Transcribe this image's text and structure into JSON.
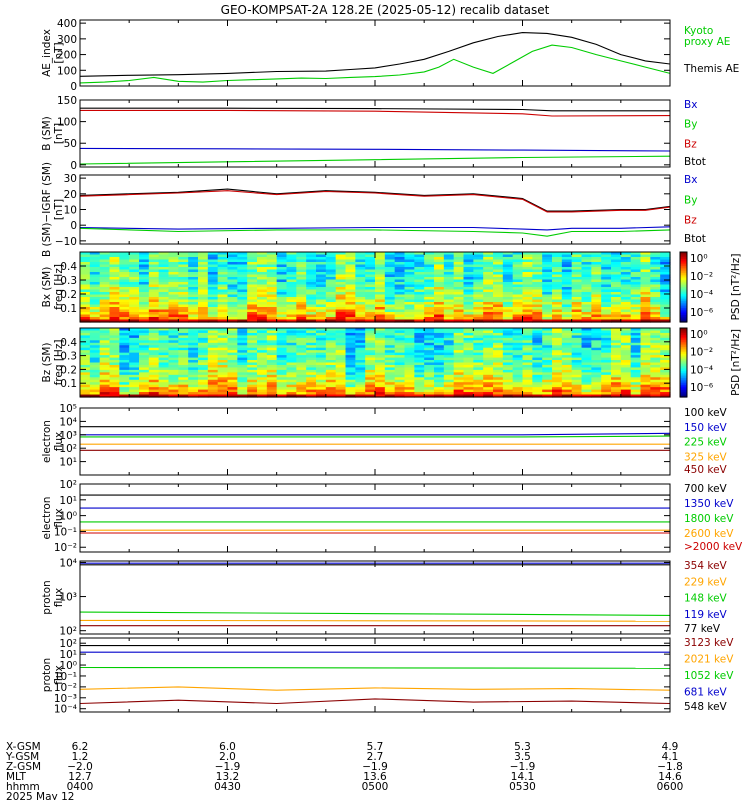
{
  "title": "GEO-KOMPSAT-2A 128.2E (2025-05-12) recalib dataset",
  "chart_data": [
    {
      "type": "line",
      "id": "ae",
      "ylabel": [
        "AE_index",
        "[nT]"
      ],
      "ylim": [
        0,
        420
      ],
      "yticks": [
        "400",
        "300",
        "200",
        "100",
        "0"
      ],
      "ytick_values": [
        400,
        300,
        200,
        100,
        0
      ],
      "legend": [
        {
          "text": "Kyoto",
          "color": "#00cc00"
        },
        {
          "text": "proxy AE",
          "color": "#00cc00"
        },
        {
          "text": "Themis AE",
          "color": "#000000"
        }
      ],
      "series": [
        {
          "name": "Themis AE",
          "color": "#000000",
          "x": [
            0,
            10,
            20,
            30,
            40,
            50,
            55,
            60,
            65,
            70,
            75,
            80,
            85,
            90,
            95,
            100,
            105,
            110,
            115,
            120
          ],
          "y": [
            62,
            68,
            72,
            80,
            92,
            95,
            105,
            115,
            140,
            170,
            220,
            275,
            315,
            340,
            335,
            310,
            265,
            200,
            160,
            140
          ]
        },
        {
          "name": "Kyoto proxy AE",
          "color": "#00cc00",
          "x": [
            0,
            5,
            10,
            15,
            20,
            25,
            30,
            35,
            40,
            45,
            50,
            55,
            60,
            65,
            70,
            73,
            76,
            80,
            84,
            88,
            92,
            96,
            100,
            105,
            110,
            115,
            120
          ],
          "y": [
            20,
            25,
            35,
            55,
            30,
            25,
            35,
            40,
            45,
            50,
            48,
            55,
            60,
            70,
            90,
            120,
            170,
            120,
            80,
            150,
            220,
            260,
            245,
            200,
            160,
            120,
            80
          ]
        }
      ]
    },
    {
      "type": "line",
      "id": "b",
      "ylabel": [
        "B (SM)",
        "[nT]"
      ],
      "ylim": [
        -5,
        150
      ],
      "yticks": [
        "150",
        "100",
        "50",
        "0"
      ],
      "ytick_values": [
        150,
        100,
        50,
        0
      ],
      "legend": [
        {
          "text": "Bx",
          "color": "#0000cc"
        },
        {
          "text": "By",
          "color": "#00cc00"
        },
        {
          "text": "Bz",
          "color": "#cc0000"
        },
        {
          "text": "Btot",
          "color": "#000000"
        }
      ],
      "series": [
        {
          "name": "Btot",
          "color": "#000000",
          "x": [
            0,
            30,
            60,
            90,
            96,
            120
          ],
          "y": [
            131,
            131,
            130,
            128,
            125,
            125
          ]
        },
        {
          "name": "Bz",
          "color": "#cc0000",
          "x": [
            0,
            30,
            60,
            90,
            96,
            120
          ],
          "y": [
            126,
            126,
            124,
            118,
            113,
            114
          ]
        },
        {
          "name": "Bx",
          "color": "#0000cc",
          "x": [
            0,
            30,
            60,
            90,
            120
          ],
          "y": [
            38,
            37,
            36,
            34,
            32
          ]
        },
        {
          "name": "By",
          "color": "#00cc00",
          "x": [
            0,
            30,
            60,
            90,
            120
          ],
          "y": [
            2,
            7,
            12,
            17,
            20
          ]
        }
      ]
    },
    {
      "type": "line",
      "id": "db",
      "ylabel": [
        "B (SM)−IGRF (SM)",
        "[nT]"
      ],
      "ylim": [
        -12,
        32
      ],
      "yticks": [
        "30",
        "20",
        "10",
        "0",
        "−10"
      ],
      "ytick_values": [
        30,
        20,
        10,
        0,
        -10
      ],
      "legend": [
        {
          "text": "Bx",
          "color": "#0000cc"
        },
        {
          "text": "By",
          "color": "#00cc00"
        },
        {
          "text": "Bz",
          "color": "#cc0000"
        },
        {
          "text": "Btot",
          "color": "#000000"
        }
      ],
      "series": [
        {
          "name": "Btot",
          "color": "#000000",
          "x": [
            0,
            10,
            20,
            30,
            40,
            50,
            60,
            70,
            80,
            90,
            95,
            100,
            110,
            115,
            120
          ],
          "y": [
            19,
            20,
            21,
            23,
            20,
            22,
            21,
            19,
            20,
            17,
            9,
            9,
            10,
            10,
            12
          ]
        },
        {
          "name": "Bz",
          "color": "#cc0000",
          "x": [
            0,
            10,
            20,
            30,
            40,
            50,
            60,
            70,
            80,
            90,
            95,
            100,
            110,
            115,
            120
          ],
          "y": [
            18.5,
            19.5,
            20.5,
            22,
            19.5,
            21.5,
            20.5,
            18.5,
            19.5,
            16.5,
            8.5,
            8.5,
            9.5,
            9.5,
            11.5
          ]
        },
        {
          "name": "Bx",
          "color": "#0000cc",
          "x": [
            0,
            20,
            40,
            60,
            80,
            90,
            95,
            100,
            110,
            120
          ],
          "y": [
            -1.5,
            -2.5,
            -2,
            -1.5,
            -1.5,
            -2.5,
            -3,
            -2,
            -2,
            -1
          ]
        },
        {
          "name": "By",
          "color": "#00cc00",
          "x": [
            0,
            20,
            40,
            60,
            80,
            90,
            95,
            100,
            110,
            120
          ],
          "y": [
            -2,
            -4,
            -3,
            -3,
            -4,
            -5,
            -7,
            -4,
            -4,
            -3
          ]
        }
      ]
    },
    {
      "type": "heatmap",
      "id": "bx-psd",
      "ylabel": [
        "Bx (SM)",
        "freq [Hz]"
      ],
      "ylim": [
        0,
        0.5
      ],
      "yticks": [
        "0.4",
        "0.3",
        "0.2",
        "0.1"
      ],
      "ytick_values": [
        0.4,
        0.3,
        0.2,
        0.1
      ],
      "colorbar": {
        "label": "PSD [nT²/Hz]",
        "ticks": [
          "10⁰",
          "10⁻²",
          "10⁻⁴",
          "10⁻⁶"
        ]
      }
    },
    {
      "type": "heatmap",
      "id": "bz-psd",
      "ylabel": [
        "Bz (SM)",
        "freq [Hz]"
      ],
      "ylim": [
        0,
        0.5
      ],
      "yticks": [
        "0.4",
        "0.3",
        "0.2",
        "0.1"
      ],
      "ytick_values": [
        0.4,
        0.3,
        0.2,
        0.1
      ],
      "colorbar": {
        "label": "PSD [nT²/Hz]",
        "ticks": [
          "10⁰",
          "10⁻²",
          "10⁻⁴",
          "10⁻⁶"
        ]
      }
    },
    {
      "type": "line",
      "id": "elec-low",
      "log": true,
      "ylabel": [
        "electron",
        "flux"
      ],
      "ylim": [
        1,
        100000
      ],
      "yticks": [
        "10⁵",
        "10⁴",
        "10³",
        "10²",
        "10¹"
      ],
      "ytick_values": [
        100000,
        10000,
        1000,
        100,
        10
      ],
      "legend": [
        {
          "text": "100 keV",
          "color": "#000000"
        },
        {
          "text": "150 keV",
          "color": "#0000cc"
        },
        {
          "text": "225 keV",
          "color": "#00cc00"
        },
        {
          "text": "325 keV",
          "color": "#ffa500"
        },
        {
          "text": "450 keV",
          "color": "#8b0000"
        }
      ],
      "series": [
        {
          "name": "100 keV",
          "color": "#000000",
          "x": [
            0,
            120
          ],
          "y": [
            4000,
            4000
          ]
        },
        {
          "name": "150 keV",
          "color": "#0000cc",
          "x": [
            0,
            90,
            120
          ],
          "y": [
            1000,
            1000,
            1300
          ]
        },
        {
          "name": "225 keV",
          "color": "#00cc00",
          "x": [
            0,
            90,
            120
          ],
          "y": [
            700,
            700,
            800
          ]
        },
        {
          "name": "325 keV",
          "color": "#ffa500",
          "x": [
            0,
            120
          ],
          "y": [
            200,
            200
          ]
        },
        {
          "name": "450 keV",
          "color": "#8b0000",
          "x": [
            0,
            120
          ],
          "y": [
            70,
            70
          ]
        }
      ]
    },
    {
      "type": "line",
      "id": "elec-high",
      "log": true,
      "ylabel": [
        "electron",
        "flux"
      ],
      "ylim": [
        0.005,
        100
      ],
      "yticks": [
        "10²",
        "10¹",
        "10⁰",
        "10⁻¹",
        "10⁻²"
      ],
      "ytick_values": [
        100,
        10,
        1,
        0.1,
        0.01
      ],
      "legend": [
        {
          "text": "700 keV",
          "color": "#000000"
        },
        {
          "text": "1350 keV",
          "color": "#0000cc"
        },
        {
          "text": "1800 keV",
          "color": "#00cc00"
        },
        {
          "text": "2600 keV",
          "color": "#ffa500"
        },
        {
          "text": ">2000 keV",
          "color": "#cc0000"
        }
      ],
      "series": [
        {
          "name": "700 keV",
          "color": "#000000",
          "x": [
            0,
            120
          ],
          "y": [
            20,
            20
          ]
        },
        {
          "name": "1350 keV",
          "color": "#0000cc",
          "x": [
            0,
            120
          ],
          "y": [
            3,
            3
          ]
        },
        {
          "name": "1800 keV",
          "color": "#00cc00",
          "x": [
            0,
            120
          ],
          "y": [
            0.4,
            0.4
          ]
        },
        {
          "name": "2600 keV",
          "color": "#ffa500",
          "x": [
            0,
            120
          ],
          "y": [
            0.12,
            0.12
          ]
        },
        {
          "name": ">2000 keV",
          "color": "#cc0000",
          "x": [
            0,
            120
          ],
          "y": [
            0.08,
            0.08
          ]
        }
      ]
    },
    {
      "type": "line",
      "id": "proton-low",
      "log": true,
      "ylabel": [
        "proton",
        "flux"
      ],
      "ylim": [
        80,
        11000
      ],
      "yticks": [
        "10⁴",
        "10³",
        "10²"
      ],
      "ytick_values": [
        10000,
        1000,
        100
      ],
      "legend": [
        {
          "text": "354 keV",
          "color": "#8b0000"
        },
        {
          "text": "229 keV",
          "color": "#ffa500"
        },
        {
          "text": "148 keV",
          "color": "#00cc00"
        },
        {
          "text": "119 keV",
          "color": "#0000cc"
        },
        {
          "text": "77 keV",
          "color": "#000000"
        }
      ],
      "series": [
        {
          "name": "77 keV",
          "color": "#000000",
          "x": [
            0,
            120
          ],
          "y": [
            8500,
            8500
          ]
        },
        {
          "name": "119 keV",
          "color": "#0000cc",
          "x": [
            0,
            120
          ],
          "y": [
            9500,
            9500
          ]
        },
        {
          "name": "148 keV",
          "color": "#00cc00",
          "x": [
            0,
            90,
            120
          ],
          "y": [
            350,
            300,
            280
          ]
        },
        {
          "name": "229 keV",
          "color": "#ffa500",
          "x": [
            0,
            120
          ],
          "y": [
            200,
            190
          ]
        },
        {
          "name": "354 keV",
          "color": "#8b0000",
          "x": [
            0,
            120
          ],
          "y": [
            140,
            140
          ]
        }
      ]
    },
    {
      "type": "line",
      "id": "proton-high",
      "log": true,
      "ylabel": [
        "proton",
        "flux"
      ],
      "ylim": [
        5e-05,
        300
      ],
      "yticks": [
        "10²",
        "10¹",
        "10⁰",
        "10⁻¹",
        "10⁻²",
        "10⁻³",
        "10⁻⁴"
      ],
      "ytick_values": [
        100,
        10,
        1,
        0.1,
        0.01,
        0.001,
        0.0001
      ],
      "legend": [
        {
          "text": "3123 keV",
          "color": "#8b0000"
        },
        {
          "text": "2021 keV",
          "color": "#ffa500"
        },
        {
          "text": "1052 keV",
          "color": "#00cc00"
        },
        {
          "text": "681 keV",
          "color": "#0000cc"
        },
        {
          "text": "548 keV",
          "color": "#000000"
        }
      ],
      "series": [
        {
          "name": "548 keV",
          "color": "#000000",
          "x": [
            0,
            120
          ],
          "y": [
            60,
            60
          ]
        },
        {
          "name": "681 keV",
          "color": "#0000cc",
          "x": [
            0,
            120
          ],
          "y": [
            15,
            15
          ]
        },
        {
          "name": "1052 keV",
          "color": "#00cc00",
          "x": [
            0,
            120
          ],
          "y": [
            0.6,
            0.5
          ]
        },
        {
          "name": "2021 keV",
          "color": "#ffa500",
          "x": [
            0,
            20,
            40,
            60,
            80,
            100,
            120
          ],
          "y": [
            0.006,
            0.01,
            0.005,
            0.008,
            0.006,
            0.007,
            0.005
          ]
        },
        {
          "name": "3123 keV",
          "color": "#8b0000",
          "x": [
            0,
            20,
            40,
            60,
            80,
            100,
            120
          ],
          "y": [
            0.0003,
            0.0006,
            0.0003,
            0.0008,
            0.0004,
            0.0005,
            0.0003
          ]
        }
      ]
    }
  ],
  "ephemeris": {
    "labels": [
      "X-GSM",
      "Y-GSM",
      "Z-GSM",
      "MLT",
      "hhmm",
      "2025 May 12"
    ],
    "columns": [
      {
        "x": 0,
        "values": [
          "6.2",
          "1.2",
          "−2.0",
          "12.7",
          "0400"
        ]
      },
      {
        "x": 30,
        "values": [
          "6.0",
          "2.0",
          "−1.9",
          "13.2",
          "0430"
        ]
      },
      {
        "x": 60,
        "values": [
          "5.7",
          "2.7",
          "−1.9",
          "13.6",
          "0500"
        ]
      },
      {
        "x": 90,
        "values": [
          "5.3",
          "3.5",
          "−1.9",
          "14.1",
          "0530"
        ]
      },
      {
        "x": 120,
        "values": [
          "4.9",
          "4.1",
          "−1.8",
          "14.6",
          "0600"
        ]
      }
    ]
  }
}
